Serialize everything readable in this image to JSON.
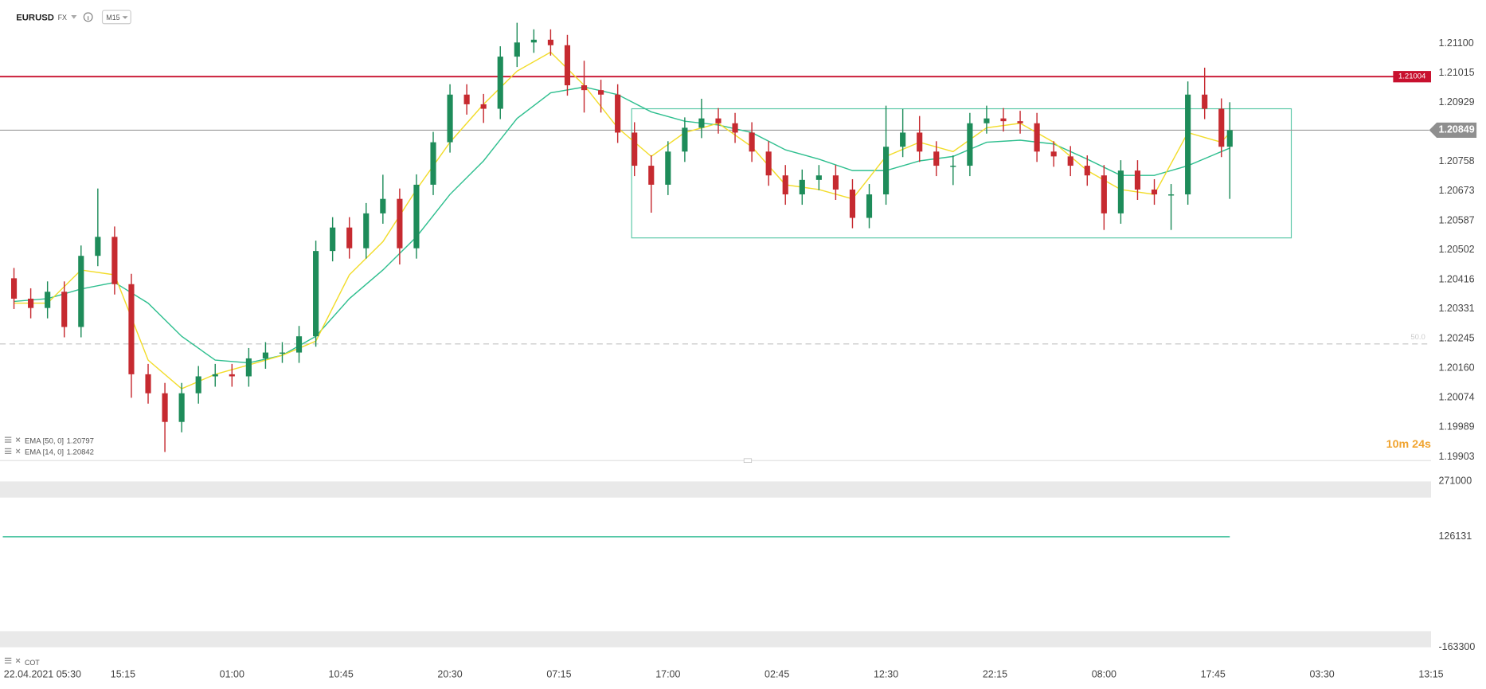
{
  "symbol": "EURUSD",
  "market": "FX",
  "interval": "M15",
  "timer": "10m 24s",
  "chart_data": [
    {
      "type": "candlestick",
      "up_color": "#1e8c5a",
      "down_color": "#c62a30",
      "x": [
        0,
        6,
        12,
        18,
        24,
        30,
        36,
        42,
        48,
        54,
        60,
        66,
        72,
        78,
        84,
        90,
        96,
        102,
        108,
        114,
        120,
        126,
        132,
        138,
        144,
        150,
        156,
        162,
        168,
        174,
        180,
        186,
        192,
        198,
        204,
        210,
        216,
        222,
        228,
        234,
        240,
        246,
        252,
        258,
        264,
        270,
        276,
        282,
        288,
        294,
        300,
        306,
        312,
        318,
        324,
        330,
        336,
        342,
        348,
        354,
        360,
        366,
        372,
        378,
        384,
        390,
        396,
        402,
        408,
        414,
        420,
        426,
        432,
        435
      ],
      "open": [
        1.2042,
        1.20361,
        1.20334,
        1.20381,
        1.20279,
        1.20485,
        1.2054,
        1.20403,
        1.20142,
        1.20087,
        1.20004,
        1.20087,
        1.20136,
        1.20142,
        1.20136,
        1.20188,
        1.20205,
        1.20205,
        1.20252,
        1.20499,
        1.20567,
        1.20507,
        1.20608,
        1.2065,
        1.20507,
        1.20691,
        1.20814,
        1.20952,
        1.20924,
        1.20911,
        1.21062,
        1.21103,
        1.21111,
        1.21095,
        1.20979,
        1.20965,
        1.20952,
        1.20842,
        1.20746,
        1.20691,
        1.20787,
        1.20856,
        1.20883,
        1.20869,
        1.20842,
        1.20787,
        1.20718,
        1.20663,
        1.20705,
        1.20718,
        1.20677,
        1.20595,
        1.20663,
        1.20801,
        1.20842,
        1.20787,
        1.20746,
        1.20746,
        1.20869,
        1.20883,
        1.20875,
        1.20869,
        1.20787,
        1.20773,
        1.20746,
        1.20718,
        1.20608,
        1.20732,
        1.20677,
        1.20663,
        1.20663,
        1.20952,
        1.20911,
        1.20801
      ],
      "high": [
        1.2045,
        1.20391,
        1.20411,
        1.20411,
        1.20515,
        1.2068,
        1.2057,
        1.20433,
        1.20172,
        1.20117,
        1.20117,
        1.20166,
        1.20172,
        1.20172,
        1.20218,
        1.20235,
        1.20235,
        1.20282,
        1.20529,
        1.20597,
        1.20597,
        1.20638,
        1.2072,
        1.2068,
        1.20721,
        1.20844,
        1.20982,
        1.20982,
        1.20954,
        1.21092,
        1.2116,
        1.21141,
        1.21141,
        1.21125,
        1.2105,
        1.20995,
        1.20982,
        1.20872,
        1.20776,
        1.20817,
        1.20886,
        1.2094,
        1.20913,
        1.20899,
        1.20872,
        1.20817,
        1.20748,
        1.20735,
        1.20748,
        1.20748,
        1.20707,
        1.20693,
        1.2092,
        1.2091,
        1.2089,
        1.20817,
        1.20776,
        1.20899,
        1.2092,
        1.20913,
        1.20905,
        1.20899,
        1.20817,
        1.20803,
        1.20776,
        1.20748,
        1.20762,
        1.20762,
        1.20707,
        1.20693,
        1.2099,
        1.2103,
        1.20941,
        1.2093
      ],
      "low": [
        1.20331,
        1.20304,
        1.20304,
        1.20249,
        1.20249,
        1.20455,
        1.20373,
        1.20074,
        1.20057,
        1.19917,
        1.19974,
        1.20057,
        1.20106,
        1.20106,
        1.20106,
        1.20158,
        1.20175,
        1.20175,
        1.20222,
        1.20469,
        1.20477,
        1.20477,
        1.20578,
        1.2046,
        1.20477,
        1.20661,
        1.20784,
        1.20894,
        1.2087,
        1.20881,
        1.21032,
        1.21073,
        1.21065,
        1.20949,
        1.209,
        1.209,
        1.20812,
        1.20716,
        1.2061,
        1.20661,
        1.20757,
        1.20826,
        1.20839,
        1.20812,
        1.20757,
        1.20688,
        1.20633,
        1.20633,
        1.20675,
        1.20647,
        1.20565,
        1.20565,
        1.20633,
        1.20771,
        1.20757,
        1.20716,
        1.2069,
        1.20716,
        1.20839,
        1.20845,
        1.20839,
        1.20757,
        1.20743,
        1.20716,
        1.20688,
        1.2056,
        1.20578,
        1.20647,
        1.20633,
        1.2056,
        1.20633,
        1.20881,
        1.20771,
        1.2065
      ],
      "close": [
        1.20361,
        1.20334,
        1.20381,
        1.20279,
        1.20485,
        1.2054,
        1.20403,
        1.20142,
        1.20087,
        1.20004,
        1.20087,
        1.20136,
        1.20142,
        1.20136,
        1.20188,
        1.20205,
        1.20205,
        1.20252,
        1.20499,
        1.20567,
        1.20507,
        1.20608,
        1.2065,
        1.20507,
        1.20691,
        1.20814,
        1.20952,
        1.20924,
        1.20911,
        1.21062,
        1.21103,
        1.21111,
        1.21095,
        1.20979,
        1.20965,
        1.20952,
        1.20842,
        1.20746,
        1.20691,
        1.20787,
        1.20856,
        1.20883,
        1.20869,
        1.20842,
        1.20787,
        1.20718,
        1.20663,
        1.20705,
        1.20718,
        1.20677,
        1.20595,
        1.20663,
        1.20801,
        1.20842,
        1.20787,
        1.20746,
        1.20746,
        1.20869,
        1.20883,
        1.20875,
        1.20869,
        1.20787,
        1.20773,
        1.20746,
        1.20718,
        1.20608,
        1.20732,
        1.20677,
        1.20663,
        1.20663,
        1.20952,
        1.20911,
        1.20801,
        1.20849
      ],
      "series": [
        {
          "name": "EMA [50, 0]",
          "color": "#2fbf8f",
          "x": [
            0,
            12,
            24,
            36,
            48,
            60,
            72,
            84,
            96,
            108,
            120,
            132,
            144,
            156,
            168,
            180,
            192,
            204,
            216,
            228,
            240,
            252,
            264,
            276,
            288,
            300,
            312,
            324,
            336,
            348,
            360,
            372,
            384,
            396,
            408,
            420,
            432,
            435
          ],
          "values": [
            1.20353,
            1.20361,
            1.20389,
            1.20408,
            1.20348,
            1.20252,
            1.20183,
            1.20175,
            1.20197,
            1.20252,
            1.20361,
            1.20444,
            1.2054,
            1.20663,
            1.2076,
            1.20883,
            1.20957,
            1.20974,
            1.20952,
            1.20902,
            1.20875,
            1.20864,
            1.20842,
            1.20792,
            1.20765,
            1.20732,
            1.20732,
            1.2076,
            1.20773,
            1.20814,
            1.2082,
            1.20809,
            1.20765,
            1.20718,
            1.20718,
            1.20746,
            1.20787,
            1.20797
          ]
        },
        {
          "name": "EMA [14, 0]",
          "color": "#f2dc2a",
          "x": [
            0,
            12,
            24,
            36,
            48,
            60,
            72,
            84,
            96,
            108,
            120,
            132,
            144,
            156,
            168,
            180,
            192,
            204,
            216,
            228,
            240,
            252,
            264,
            276,
            288,
            300,
            312,
            324,
            336,
            348,
            360,
            372,
            384,
            396,
            408,
            420,
            432,
            435
          ],
          "values": [
            1.20348,
            1.20348,
            1.20444,
            1.2043,
            1.20183,
            1.201,
            1.20142,
            1.20169,
            1.20197,
            1.20238,
            1.2043,
            1.20526,
            1.20677,
            1.20814,
            1.20924,
            1.2102,
            1.21075,
            1.20979,
            1.20856,
            1.20773,
            1.20842,
            1.20869,
            1.20801,
            1.20691,
            1.20677,
            1.2065,
            1.20773,
            1.20814,
            1.20787,
            1.20856,
            1.20869,
            1.20814,
            1.20732,
            1.20677,
            1.20663,
            1.20842,
            1.20814,
            1.20842
          ]
        }
      ],
      "levels": [
        {
          "value": 1.21004,
          "color": "#c8102e"
        }
      ],
      "hlines": [
        {
          "value": 1.2023,
          "label": "50.0"
        }
      ],
      "rectangle": {
        "x": [
          221,
          457
        ],
        "y": [
          1.20537,
          1.20911
        ],
        "color": "#5cc8a8"
      },
      "xlim": [
        -5,
        507
      ],
      "xticks": [
        {
          "value": 0,
          "label": "22.04.2021  05:30"
        },
        {
          "value": 39,
          "label": "15:15"
        },
        {
          "value": 78,
          "label": "01:00"
        },
        {
          "value": 117,
          "label": "10:45"
        },
        {
          "value": 156,
          "label": "20:30"
        },
        {
          "value": 195,
          "label": "07:15"
        },
        {
          "value": 234,
          "label": "17:00"
        },
        {
          "value": 273,
          "label": "02:45"
        },
        {
          "value": 312,
          "label": "12:30"
        },
        {
          "value": 351,
          "label": "22:15"
        },
        {
          "value": 390,
          "label": "08:00"
        },
        {
          "value": 429,
          "label": "17:45"
        },
        {
          "value": 468,
          "label": "03:30"
        },
        {
          "value": 507,
          "label": "13:15"
        }
      ],
      "ylim": [
        1.19892,
        1.21226
      ],
      "yticks": [
        {
          "value": 1.211,
          "label": "1.21100"
        },
        1.21015,
        1.20929,
        1.20758,
        1.20673,
        1.20587,
        1.20502,
        1.20416,
        1.20331,
        1.20245,
        {
          "value": 1.2016,
          "label": "1.20160"
        },
        1.20074,
        1.19989,
        1.19903
      ]
    },
    {
      "type": "line",
      "indicator": "COT",
      "color": "#3cbf9a",
      "x": [
        -4,
        435
      ],
      "values": [
        126131,
        126131
      ],
      "xlim": [
        -5,
        507
      ],
      "ylim": [
        -180672,
        315671
      ],
      "yticks": [
        271000,
        126131,
        -163300
      ]
    }
  ]
}
